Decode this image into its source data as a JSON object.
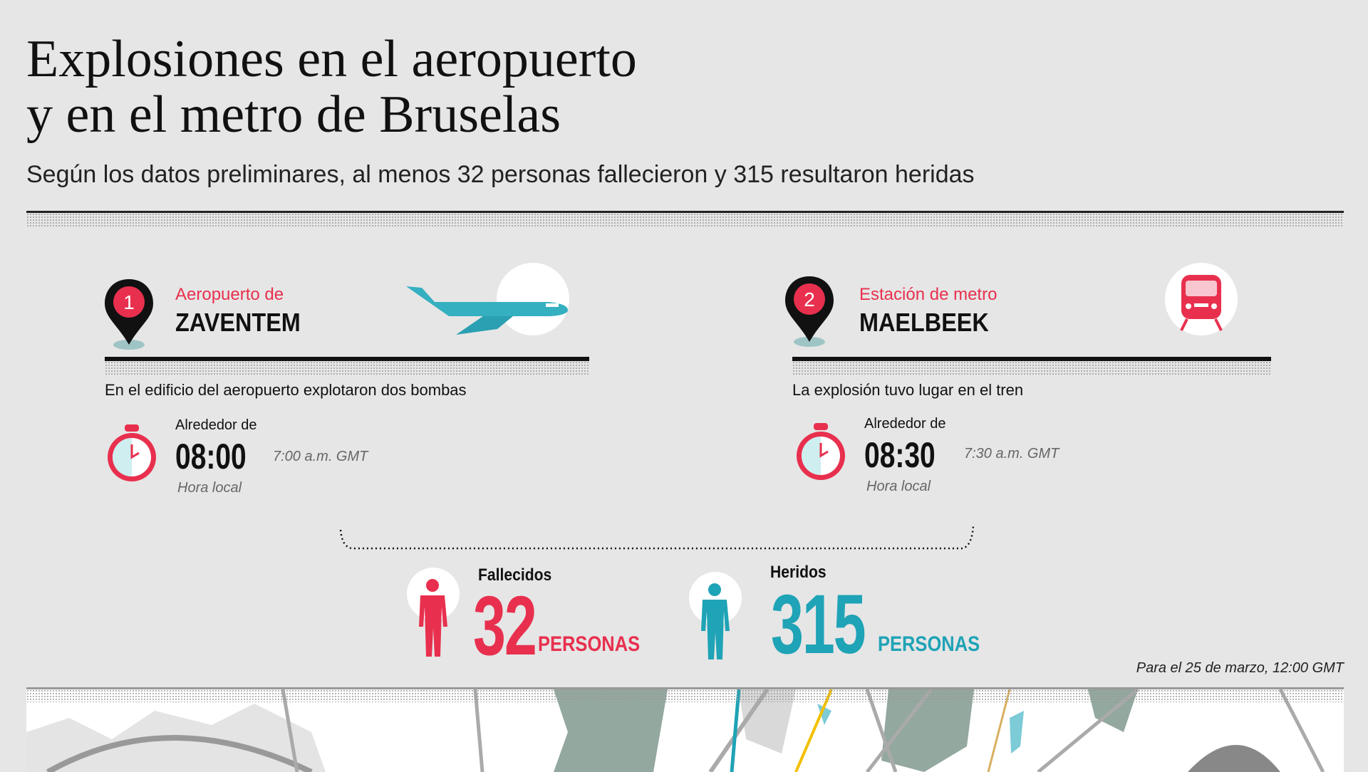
{
  "header": {
    "title_line1": "Explosiones en el aeropuerto",
    "title_line2": "y en el metro de Bruselas",
    "subtitle": "Según los datos preliminares, al menos 32 personas fallecieron y 315 resultaron heridas"
  },
  "colors": {
    "background": "#e6e6e6",
    "accent_red": "#e8304e",
    "accent_teal": "#1fa3b6"
  },
  "locations": [
    {
      "number": "1",
      "kicker": "Aeropuerto de",
      "name": "ZAVENTEM",
      "icon": "airplane-icon",
      "description": "En el edificio del aeropuerto explotaron dos bombas",
      "around": "Alrededor de",
      "local_time": "08:00",
      "gmt_time": "7:00 a.m. GMT",
      "local_label": "Hora local"
    },
    {
      "number": "2",
      "kicker": "Estación de metro",
      "name": "MAELBEEK",
      "icon": "metro-train-icon",
      "description": "La explosión tuvo lugar en el tren",
      "around": "Alrededor de",
      "local_time": "08:30",
      "gmt_time": "7:30 a.m. GMT",
      "local_label": "Hora local"
    }
  ],
  "casualties": {
    "dead": {
      "label": "Fallecidos",
      "value": "32",
      "unit": "PERSONAS"
    },
    "injured": {
      "label": "Heridos",
      "value": "315",
      "unit": "PERSONAS"
    }
  },
  "footnote": "Para el 25 de marzo, 12:00 GMT"
}
